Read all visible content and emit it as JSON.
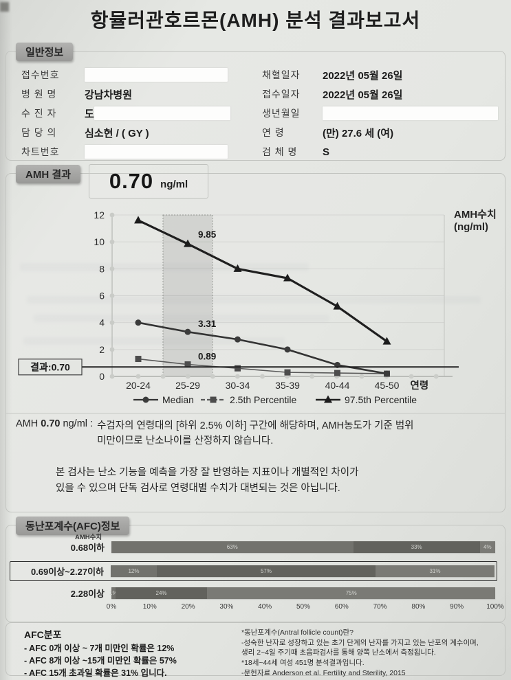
{
  "title": "항뮬러관호르몬(AMH) 분석 결과보고서",
  "general_info": {
    "tab": "일반정보",
    "left_rows": [
      {
        "label": "접수번호",
        "value": "",
        "redacted": true,
        "redact_width": 208
      },
      {
        "label": "병 원 명",
        "value": "강남차병원",
        "redacted": false,
        "redact_width": 0
      },
      {
        "label": "수 진 자",
        "value": "도",
        "redacted": true,
        "redact_width": 198
      },
      {
        "label": "담 당 의",
        "value": "심소현  / ( GY )",
        "redacted": false,
        "redact_width": 0
      },
      {
        "label": "차트번호",
        "value": "",
        "redacted": true,
        "redact_width": 208
      }
    ],
    "right_rows": [
      {
        "label": "채혈일자",
        "value": "2022년 05월 26일",
        "redacted": false,
        "redact_width": 0
      },
      {
        "label": "접수일자",
        "value": "2022년 05월 26일",
        "redacted": false,
        "redact_width": 0
      },
      {
        "label": "생년월일",
        "value": "",
        "redacted": true,
        "redact_width": 255
      },
      {
        "label": "연   령",
        "value": "(만) 27.6 세   (여)",
        "redacted": false,
        "redact_width": 0
      },
      {
        "label": "검 체 명",
        "value": "S",
        "redacted": false,
        "redact_width": 0
      }
    ]
  },
  "amh_result": {
    "tab": "AMH 결과",
    "value": "0.70",
    "unit": "ng/ml"
  },
  "chart_data": [
    {
      "type": "line",
      "categories": [
        "20-24",
        "25-29",
        "30-34",
        "35-39",
        "40-44",
        "45-50"
      ],
      "x_axis_suffix_label": "연령",
      "y_axis_title_lines": [
        "AMH수치",
        "(ng/ml)"
      ],
      "ylim": [
        0,
        12
      ],
      "yticks": [
        0,
        2,
        4,
        6,
        8,
        10,
        12
      ],
      "series": [
        {
          "name": "Median",
          "marker": "circle",
          "values": [
            4.0,
            3.31,
            2.75,
            2.0,
            0.85,
            0.2
          ]
        },
        {
          "name": "2.5th Percentile",
          "marker": "square",
          "values": [
            1.3,
            0.89,
            0.6,
            0.3,
            0.25,
            0.2
          ]
        },
        {
          "name": "97.5th Percentile",
          "marker": "triangle",
          "values": [
            11.6,
            9.85,
            8.0,
            7.3,
            5.2,
            2.6
          ]
        }
      ],
      "point_labels": [
        {
          "series": 2,
          "category": 1,
          "text": "9.85"
        },
        {
          "series": 0,
          "category": 1,
          "text": "3.31"
        },
        {
          "series": 1,
          "category": 1,
          "text": "0.89"
        }
      ],
      "highlight_band_category": 1,
      "result_line": {
        "value": 0.7,
        "label": "결과:0.70"
      },
      "legend": [
        "Median",
        "2.5th Percentile",
        "97.5th Percentile"
      ],
      "legend_position": "bottom",
      "grid": true
    },
    {
      "type": "bar",
      "orientation": "horizontal-stacked",
      "y_axis_title": "AMH수치",
      "rows": [
        {
          "label": "0.68이하",
          "segments": [
            63,
            33,
            4
          ],
          "highlight": false
        },
        {
          "label": "0.69이상~2.27이하",
          "segments": [
            12,
            57,
            31
          ],
          "highlight": true
        },
        {
          "label": "2.28이상",
          "segments": [
            1,
            24,
            75
          ],
          "highlight": false
        }
      ],
      "x_ticks": [
        "0%",
        "10%",
        "20%",
        "30%",
        "40%",
        "50%",
        "60%",
        "70%",
        "80%",
        "90%",
        "100%"
      ],
      "xlim": [
        0,
        100
      ]
    }
  ],
  "interpretation": {
    "prefix": "AMH",
    "value": "0.70",
    "unit": "ng/ml",
    "separator": " : ",
    "line1": "수검자의 연령대의 [하위 2.5% 이하]  구간에 해당하며,  AMH농도가 기준 범위",
    "line2": "미만이므로 난소나이를 산정하지 않습니다."
  },
  "disclaimer": {
    "line1": "본 검사는 난소 기능을 예측을 가장 잘 반영하는 지표이나 개별적인 차이가",
    "line2": "있을 수 있으며 단독 검사로 연령대별 수치가 대변되는 것은 아닙니다."
  },
  "afc": {
    "tab": "동난포계수(AFC)정보"
  },
  "footer": {
    "left_title": "AFC분포",
    "left_items": [
      "- AFC 0개 이상 ~ 7개 미만인 확률은   12%",
      "- AFC 8개 이상 ~15개 미만인 확률은    57%",
      "- AFC 15개 초과일 확률은  31% 입니다."
    ],
    "right_lines": [
      "*동난포계수(Antral follicle count)란?",
      "-성숙한 난자로 성장하고 있는 초기 단계의 난자를 가지고 있는 난포의 계수이며,",
      " 생리 2~4일 주기때 초음파검사를 통해 양쪽 난소에서 측정됩니다.",
      "*18세~44세 여성 451명 분석결과입니다.",
      "-문헌자료  Anderson et al. Fertility and Sterility, 2015"
    ]
  }
}
